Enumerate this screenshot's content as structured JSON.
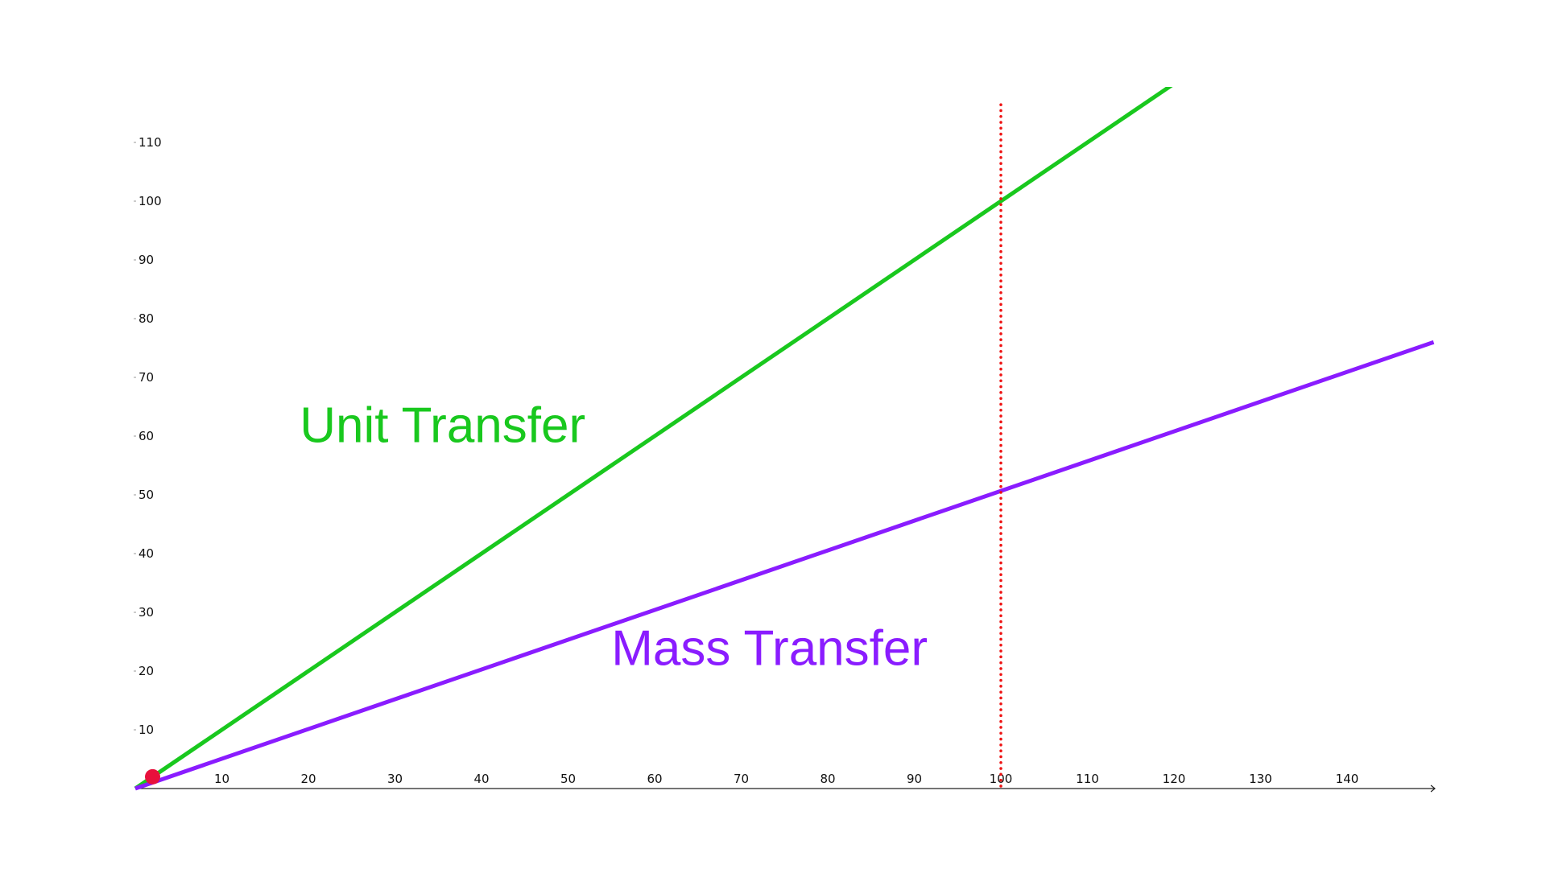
{
  "chart_data": {
    "type": "line",
    "xlim": [
      0,
      150
    ],
    "ylim": [
      0,
      120
    ],
    "x_ticks": [
      10,
      20,
      30,
      40,
      50,
      60,
      70,
      80,
      90,
      100,
      110,
      120,
      130,
      140
    ],
    "y_ticks": [
      10,
      20,
      30,
      40,
      50,
      60,
      70,
      80,
      90,
      100,
      110
    ],
    "grid": false,
    "series": [
      {
        "name": "Unit Transfer",
        "color": "#19c81e",
        "x": [
          0,
          120
        ],
        "y": [
          0,
          120
        ]
      },
      {
        "name": "Mass Transfer",
        "color": "#8a1cff",
        "x": [
          0,
          150
        ],
        "y": [
          0,
          76
        ]
      }
    ],
    "annotations": {
      "vertical_line": {
        "x": 100,
        "y_range": [
          0,
          117
        ],
        "color": "#ee1111",
        "style": "dotted"
      },
      "point": {
        "x": 2,
        "y": 2,
        "color": "#e8113c"
      }
    },
    "labels": [
      {
        "text": "Unit Transfer",
        "color": "#19c81e",
        "x": 19,
        "y": 59
      },
      {
        "text": "Mass Transfer",
        "color": "#8a1cff",
        "x": 55,
        "y": 21
      }
    ]
  }
}
